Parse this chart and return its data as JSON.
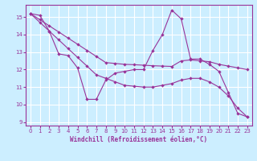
{
  "xlabel": "Windchill (Refroidissement éolien,°C)",
  "bg_color": "#cceeff",
  "line_color": "#993399",
  "grid_color": "#ffffff",
  "xlim": [
    -0.5,
    23.5
  ],
  "ylim": [
    8.8,
    15.7
  ],
  "yticks": [
    9,
    10,
    11,
    12,
    13,
    14,
    15
  ],
  "xticks": [
    0,
    1,
    2,
    3,
    4,
    5,
    6,
    7,
    8,
    9,
    10,
    11,
    12,
    13,
    14,
    15,
    16,
    17,
    18,
    19,
    20,
    21,
    22,
    23
  ],
  "series": [
    [
      15.2,
      15.1,
      14.2,
      12.9,
      12.8,
      12.1,
      10.3,
      10.3,
      11.4,
      11.8,
      11.9,
      12.0,
      12.0,
      13.1,
      14.0,
      15.4,
      14.9,
      12.6,
      12.6,
      12.3,
      11.9,
      10.7,
      9.5,
      9.3
    ],
    [
      15.2,
      14.85,
      14.5,
      14.15,
      13.8,
      13.45,
      13.1,
      12.75,
      12.4,
      12.35,
      12.3,
      12.28,
      12.25,
      12.22,
      12.2,
      12.18,
      12.5,
      12.55,
      12.5,
      12.45,
      12.3,
      12.2,
      12.1,
      12.0
    ],
    [
      15.2,
      14.7,
      14.2,
      13.7,
      13.2,
      12.7,
      12.2,
      11.7,
      11.5,
      11.3,
      11.1,
      11.05,
      11.0,
      11.0,
      11.1,
      11.2,
      11.4,
      11.5,
      11.5,
      11.3,
      11.0,
      10.5,
      9.8,
      9.3
    ]
  ]
}
